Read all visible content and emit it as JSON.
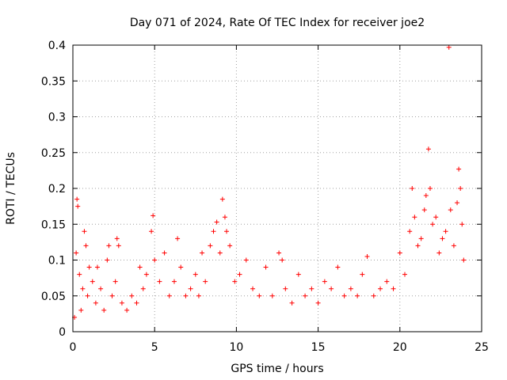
{
  "chart_data": {
    "type": "scatter",
    "title": "Day 071 of 2024, Rate Of TEC Index for receiver joe2",
    "xlabel": "GPS time / hours",
    "ylabel": "ROTI / TECUs",
    "xlim": [
      0,
      25
    ],
    "ylim": [
      0,
      0.4
    ],
    "xticks": [
      0,
      5,
      10,
      15,
      20,
      25
    ],
    "xtick_labels": [
      "0",
      "5",
      "10",
      "15",
      "20",
      "25"
    ],
    "yticks": [
      0,
      0.05,
      0.1,
      0.15,
      0.2,
      0.25,
      0.3,
      0.35,
      0.4
    ],
    "ytick_labels": [
      "0",
      "0.05",
      "0.1",
      "0.15",
      "0.2",
      "0.25",
      "0.3",
      "0.35",
      "0.4"
    ],
    "grid": true,
    "marker": "+",
    "color": "#ff0000",
    "series": [
      {
        "name": "ROTI",
        "points": [
          [
            0.1,
            0.02
          ],
          [
            0.2,
            0.11
          ],
          [
            0.25,
            0.185
          ],
          [
            0.3,
            0.175
          ],
          [
            0.4,
            0.08
          ],
          [
            0.5,
            0.03
          ],
          [
            0.6,
            0.06
          ],
          [
            0.7,
            0.14
          ],
          [
            0.8,
            0.12
          ],
          [
            0.9,
            0.05
          ],
          [
            1.0,
            0.09
          ],
          [
            1.2,
            0.07
          ],
          [
            1.4,
            0.04
          ],
          [
            1.5,
            0.09
          ],
          [
            1.7,
            0.06
          ],
          [
            1.9,
            0.03
          ],
          [
            2.1,
            0.1
          ],
          [
            2.2,
            0.12
          ],
          [
            2.4,
            0.05
          ],
          [
            2.6,
            0.07
          ],
          [
            2.7,
            0.13
          ],
          [
            2.8,
            0.12
          ],
          [
            3.0,
            0.04
          ],
          [
            3.3,
            0.03
          ],
          [
            3.6,
            0.05
          ],
          [
            3.9,
            0.04
          ],
          [
            4.1,
            0.09
          ],
          [
            4.3,
            0.06
          ],
          [
            4.5,
            0.08
          ],
          [
            4.8,
            0.14
          ],
          [
            4.9,
            0.162
          ],
          [
            5.0,
            0.1
          ],
          [
            5.3,
            0.07
          ],
          [
            5.6,
            0.11
          ],
          [
            5.9,
            0.05
          ],
          [
            6.2,
            0.07
          ],
          [
            6.4,
            0.13
          ],
          [
            6.6,
            0.09
          ],
          [
            6.9,
            0.05
          ],
          [
            7.2,
            0.06
          ],
          [
            7.5,
            0.08
          ],
          [
            7.7,
            0.05
          ],
          [
            7.9,
            0.11
          ],
          [
            8.1,
            0.07
          ],
          [
            8.4,
            0.12
          ],
          [
            8.6,
            0.14
          ],
          [
            8.8,
            0.153
          ],
          [
            9.0,
            0.11
          ],
          [
            9.15,
            0.185
          ],
          [
            9.3,
            0.16
          ],
          [
            9.4,
            0.14
          ],
          [
            9.6,
            0.12
          ],
          [
            9.9,
            0.07
          ],
          [
            10.2,
            0.08
          ],
          [
            10.6,
            0.1
          ],
          [
            11.0,
            0.06
          ],
          [
            11.4,
            0.05
          ],
          [
            11.8,
            0.09
          ],
          [
            12.2,
            0.05
          ],
          [
            12.6,
            0.11
          ],
          [
            12.8,
            0.1
          ],
          [
            13.0,
            0.06
          ],
          [
            13.4,
            0.04
          ],
          [
            13.8,
            0.08
          ],
          [
            14.2,
            0.05
          ],
          [
            14.6,
            0.06
          ],
          [
            15.0,
            0.04
          ],
          [
            15.4,
            0.07
          ],
          [
            15.8,
            0.06
          ],
          [
            16.2,
            0.09
          ],
          [
            16.6,
            0.05
          ],
          [
            17.0,
            0.06
          ],
          [
            17.4,
            0.05
          ],
          [
            17.7,
            0.08
          ],
          [
            18.0,
            0.105
          ],
          [
            18.4,
            0.05
          ],
          [
            18.8,
            0.06
          ],
          [
            19.2,
            0.07
          ],
          [
            19.6,
            0.06
          ],
          [
            20.0,
            0.11
          ],
          [
            20.3,
            0.08
          ],
          [
            20.6,
            0.14
          ],
          [
            20.75,
            0.2
          ],
          [
            20.9,
            0.16
          ],
          [
            21.1,
            0.12
          ],
          [
            21.3,
            0.13
          ],
          [
            21.5,
            0.17
          ],
          [
            21.6,
            0.19
          ],
          [
            21.75,
            0.255
          ],
          [
            21.85,
            0.2
          ],
          [
            22.0,
            0.15
          ],
          [
            22.2,
            0.16
          ],
          [
            22.4,
            0.11
          ],
          [
            22.6,
            0.13
          ],
          [
            22.8,
            0.14
          ],
          [
            23.0,
            0.397
          ],
          [
            23.1,
            0.17
          ],
          [
            23.3,
            0.12
          ],
          [
            23.5,
            0.18
          ],
          [
            23.6,
            0.227
          ],
          [
            23.7,
            0.2
          ],
          [
            23.8,
            0.15
          ],
          [
            23.9,
            0.1
          ]
        ]
      }
    ]
  }
}
